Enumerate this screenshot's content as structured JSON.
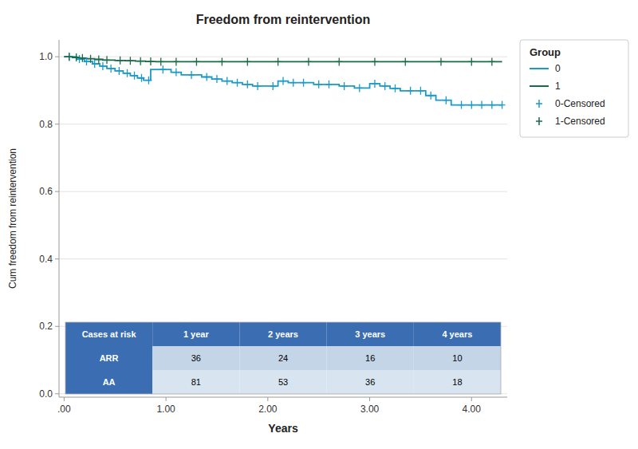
{
  "chart_data": {
    "type": "line",
    "title": "Freedom from reintervention",
    "x_label": "Years",
    "y_label": "Cum freedom from reintervention",
    "xlim": [
      -0.05,
      4.35
    ],
    "ylim": [
      -0.01,
      1.05
    ],
    "xticks": [
      {
        "value": 0.0,
        "label": ".00"
      },
      {
        "value": 1.0,
        "label": "1.00"
      },
      {
        "value": 2.0,
        "label": "2.00"
      },
      {
        "value": 3.0,
        "label": "3.00"
      },
      {
        "value": 4.0,
        "label": "4.00"
      }
    ],
    "yticks": [
      {
        "value": 0.0,
        "label": "0.0"
      },
      0.2,
      0.4,
      0.6,
      0.8,
      {
        "value": 1.0,
        "label": "1.0"
      }
    ],
    "grid": "y",
    "legend": "right",
    "legend_title": "Group",
    "series": [
      {
        "name": "0",
        "type": "line",
        "color": "#1B9AC9",
        "x": [
          0.0,
          0.12,
          0.12,
          0.2,
          0.2,
          0.28,
          0.28,
          0.35,
          0.35,
          0.42,
          0.42,
          0.5,
          0.5,
          0.58,
          0.58,
          0.65,
          0.65,
          0.72,
          0.72,
          0.78,
          0.78,
          0.85,
          0.85,
          0.9,
          1.05,
          1.05,
          1.15,
          1.15,
          1.35,
          1.35,
          1.45,
          1.45,
          1.55,
          1.55,
          1.65,
          1.65,
          1.75,
          1.75,
          1.85,
          1.85,
          1.95,
          2.1,
          2.1,
          2.2,
          2.2,
          2.3,
          2.45,
          2.45,
          2.55,
          2.7,
          2.7,
          2.85,
          2.85,
          3.0,
          3.0,
          3.1,
          3.1,
          3.2,
          3.2,
          3.3,
          3.3,
          3.45,
          3.55,
          3.55,
          3.65,
          3.65,
          3.8,
          3.8,
          4.3
        ],
        "values": [
          1.0,
          1.0,
          0.993,
          0.993,
          0.986,
          0.986,
          0.979,
          0.979,
          0.972,
          0.972,
          0.965,
          0.965,
          0.958,
          0.958,
          0.951,
          0.951,
          0.944,
          0.944,
          0.937,
          0.937,
          0.93,
          0.93,
          0.962,
          0.962,
          0.962,
          0.954,
          0.954,
          0.946,
          0.946,
          0.94,
          0.94,
          0.934,
          0.934,
          0.928,
          0.928,
          0.923,
          0.923,
          0.918,
          0.918,
          0.913,
          0.913,
          0.913,
          0.928,
          0.928,
          0.923,
          0.923,
          0.923,
          0.918,
          0.918,
          0.918,
          0.913,
          0.913,
          0.907,
          0.907,
          0.92,
          0.92,
          0.913,
          0.913,
          0.906,
          0.906,
          0.899,
          0.899,
          0.899,
          0.885,
          0.885,
          0.871,
          0.871,
          0.857,
          0.857
        ]
      },
      {
        "name": "1",
        "type": "line",
        "color": "#1B6B4A",
        "x": [
          0.0,
          0.08,
          0.08,
          0.15,
          0.15,
          0.22,
          0.22,
          0.3,
          0.3,
          0.38,
          0.38,
          0.5,
          0.5,
          0.6,
          0.6,
          0.7,
          0.7,
          0.8,
          0.8,
          0.9,
          0.9,
          1.0,
          1.5,
          2.0,
          2.5,
          3.0,
          3.5,
          4.3
        ],
        "values": [
          1.0,
          1.0,
          0.998,
          0.998,
          0.996,
          0.996,
          0.994,
          0.994,
          0.992,
          0.992,
          0.99,
          0.99,
          0.989,
          0.989,
          0.988,
          0.988,
          0.987,
          0.987,
          0.986,
          0.986,
          0.985,
          0.985,
          0.985,
          0.985,
          0.985,
          0.985,
          0.985,
          0.985
        ]
      },
      {
        "name": "0-Censored",
        "type": "scatter",
        "marker": "plus",
        "color": "#1B9AC9",
        "x": [
          0.05,
          0.15,
          0.22,
          0.3,
          0.38,
          0.46,
          0.54,
          0.62,
          0.69,
          0.76,
          0.83,
          0.97,
          1.1,
          1.25,
          1.4,
          1.5,
          1.6,
          1.7,
          1.8,
          1.9,
          2.05,
          2.15,
          2.25,
          2.35,
          2.5,
          2.6,
          2.75,
          2.9,
          3.05,
          3.15,
          3.25,
          3.4,
          3.5,
          3.6,
          3.75,
          3.9,
          4.0,
          4.1,
          4.2,
          4.3
        ],
        "values": [
          1.0,
          0.993,
          0.986,
          0.979,
          0.972,
          0.965,
          0.958,
          0.951,
          0.944,
          0.937,
          0.93,
          0.962,
          0.954,
          0.946,
          0.94,
          0.934,
          0.928,
          0.923,
          0.918,
          0.913,
          0.913,
          0.928,
          0.923,
          0.923,
          0.918,
          0.918,
          0.913,
          0.907,
          0.92,
          0.913,
          0.906,
          0.899,
          0.899,
          0.885,
          0.871,
          0.857,
          0.857,
          0.857,
          0.857,
          0.857
        ]
      },
      {
        "name": "1-Censored",
        "type": "scatter",
        "marker": "plus",
        "color": "#1B6B4A",
        "x": [
          0.05,
          0.12,
          0.18,
          0.26,
          0.34,
          0.42,
          0.55,
          0.65,
          0.75,
          0.85,
          0.95,
          1.1,
          1.3,
          1.55,
          1.8,
          2.1,
          2.4,
          2.7,
          3.05,
          3.35,
          3.7,
          4.0,
          4.2
        ],
        "values": [
          1.0,
          0.998,
          0.996,
          0.994,
          0.992,
          0.99,
          0.989,
          0.988,
          0.987,
          0.986,
          0.985,
          0.985,
          0.985,
          0.985,
          0.985,
          0.985,
          0.985,
          0.985,
          0.985,
          0.985,
          0.985,
          0.985,
          0.985
        ]
      }
    ],
    "risk_table": {
      "headers": [
        "Cases at risk",
        "1 year",
        "2 years",
        "3 years",
        "4 years"
      ],
      "rows": [
        [
          "ARR",
          "36",
          "24",
          "16",
          "10"
        ],
        [
          "AA",
          "81",
          "53",
          "36",
          "18"
        ]
      ],
      "header_color": "#3B6DB3",
      "row_colors": [
        "#C5D5E8",
        "#D8E5F0"
      ]
    }
  }
}
